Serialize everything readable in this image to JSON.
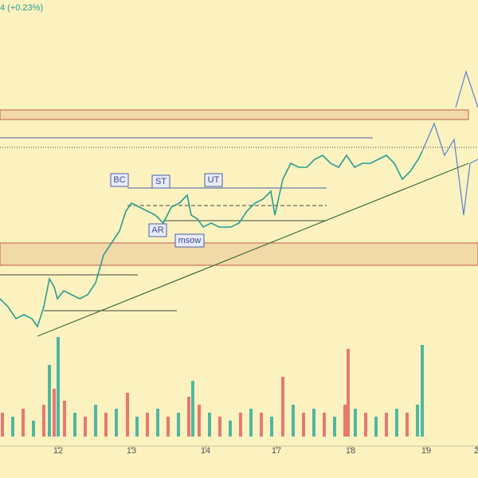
{
  "header": {
    "change": "4 (+0.23%)"
  },
  "chart_data": [
    {
      "type": "line",
      "xlim": [
        0,
        600
      ],
      "ylim": [
        0,
        560
      ],
      "xticks": [
        {
          "value": 73,
          "label": "12"
        },
        {
          "value": 165,
          "label": "13"
        },
        {
          "value": 258,
          "label": "14"
        },
        {
          "value": 347,
          "label": "17"
        },
        {
          "value": 440,
          "label": "18"
        },
        {
          "value": 535,
          "label": "19"
        },
        {
          "value": 598,
          "label": "2"
        }
      ],
      "series": [
        {
          "color": "#2a9d8f",
          "x": [
            0,
            10,
            20,
            30,
            40,
            47,
            55,
            62,
            68,
            72,
            80,
            90,
            100,
            110,
            120,
            130,
            140,
            150,
            158,
            165,
            175,
            185,
            195,
            205,
            215,
            225,
            235,
            240,
            248,
            255,
            265,
            275,
            290,
            300,
            310,
            320,
            330,
            340,
            345,
            355,
            365,
            375,
            385,
            395,
            405,
            415,
            425,
            435,
            445,
            455,
            465,
            475,
            485,
            495,
            505,
            515,
            525,
            530
          ],
          "values": [
            185,
            175,
            160,
            165,
            160,
            150,
            175,
            210,
            200,
            185,
            195,
            190,
            185,
            190,
            205,
            240,
            255,
            270,
            295,
            305,
            300,
            295,
            290,
            280,
            300,
            305,
            315,
            290,
            285,
            275,
            280,
            275,
            275,
            280,
            295,
            305,
            310,
            320,
            290,
            335,
            355,
            350,
            350,
            360,
            365,
            355,
            350,
            365,
            350,
            355,
            355,
            360,
            365,
            355,
            335,
            345,
            360,
            370
          ]
        },
        {
          "color": "#5b7fd6",
          "x": [
            530,
            545,
            558,
            570,
            582,
            590,
            600
          ],
          "values": [
            370,
            405,
            365,
            385,
            290,
            355,
            360
          ]
        },
        {
          "color": "#5b7fd6",
          "x": [
            572,
            585,
            600
          ],
          "values": [
            425,
            470,
            425
          ]
        },
        {
          "color": "#3d6b3d",
          "x": [
            47,
            588
          ],
          "values": [
            138,
            355
          ]
        }
      ],
      "zones": [
        {
          "range": [
            410,
            422
          ],
          "x": [
            0,
            588
          ]
        },
        {
          "range": [
            227,
            255
          ],
          "x": [
            0,
            600
          ]
        }
      ],
      "levels": [
        {
          "value": 375,
          "x": [
            0,
            600
          ],
          "style": "dotted"
        },
        {
          "value": 387,
          "x": [
            0,
            468
          ],
          "style": "solid"
        },
        {
          "value": 324,
          "x": [
            160,
            410
          ],
          "style": "solid"
        },
        {
          "value": 302,
          "x": [
            160,
            410
          ],
          "style": "dashed"
        },
        {
          "value": 283,
          "x": [
            205,
            410
          ],
          "style": "solid"
        },
        {
          "value": 215,
          "x": [
            0,
            173
          ],
          "style": "solid"
        },
        {
          "value": 170,
          "x": [
            55,
            222
          ],
          "style": "solid"
        }
      ],
      "annotations": [
        {
          "text": "BC",
          "x": 150,
          "y": 334
        },
        {
          "text": "ST",
          "x": 202,
          "y": 332
        },
        {
          "text": "UT",
          "x": 268,
          "y": 334
        },
        {
          "text": "AR",
          "x": 198,
          "y": 271
        },
        {
          "text": "msow",
          "x": 238,
          "y": 258
        }
      ]
    },
    {
      "type": "bar",
      "ylim": [
        0,
        130
      ],
      "x": [
        3,
        16,
        29,
        42,
        55,
        62,
        68,
        73,
        81,
        94,
        107,
        120,
        133,
        146,
        160,
        172,
        185,
        198,
        211,
        224,
        237,
        242,
        250,
        263,
        276,
        289,
        302,
        315,
        328,
        341,
        355,
        368,
        381,
        394,
        407,
        420,
        433,
        437,
        446,
        459,
        472,
        485,
        498,
        511,
        524,
        530
      ],
      "values": [
        30,
        25,
        35,
        20,
        40,
        90,
        60,
        125,
        45,
        30,
        25,
        40,
        30,
        35,
        55,
        25,
        30,
        35,
        25,
        30,
        50,
        70,
        40,
        30,
        25,
        20,
        30,
        35,
        30,
        25,
        75,
        40,
        30,
        35,
        30,
        25,
        40,
        110,
        35,
        30,
        25,
        30,
        35,
        30,
        40,
        115
      ],
      "colors": [
        "#e05a5a",
        "#26a69a",
        "#e05a5a",
        "#26a69a",
        "#e05a5a",
        "#26a69a",
        "#e05a5a",
        "#26a69a",
        "#e05a5a",
        "#26a69a",
        "#e05a5a",
        "#26a69a",
        "#e05a5a",
        "#26a69a",
        "#e05a5a",
        "#26a69a",
        "#e05a5a",
        "#26a69a",
        "#e05a5a",
        "#26a69a",
        "#e05a5a",
        "#26a69a",
        "#e05a5a",
        "#26a69a",
        "#e05a5a",
        "#26a69a",
        "#e05a5a",
        "#26a69a",
        "#e05a5a",
        "#26a69a",
        "#e05a5a",
        "#26a69a",
        "#e05a5a",
        "#26a69a",
        "#e05a5a",
        "#26a69a",
        "#e05a5a",
        "#e05a5a",
        "#26a69a",
        "#e05a5a",
        "#26a69a",
        "#e05a5a",
        "#26a69a",
        "#e05a5a",
        "#26a69a",
        "#26a69a"
      ]
    }
  ]
}
